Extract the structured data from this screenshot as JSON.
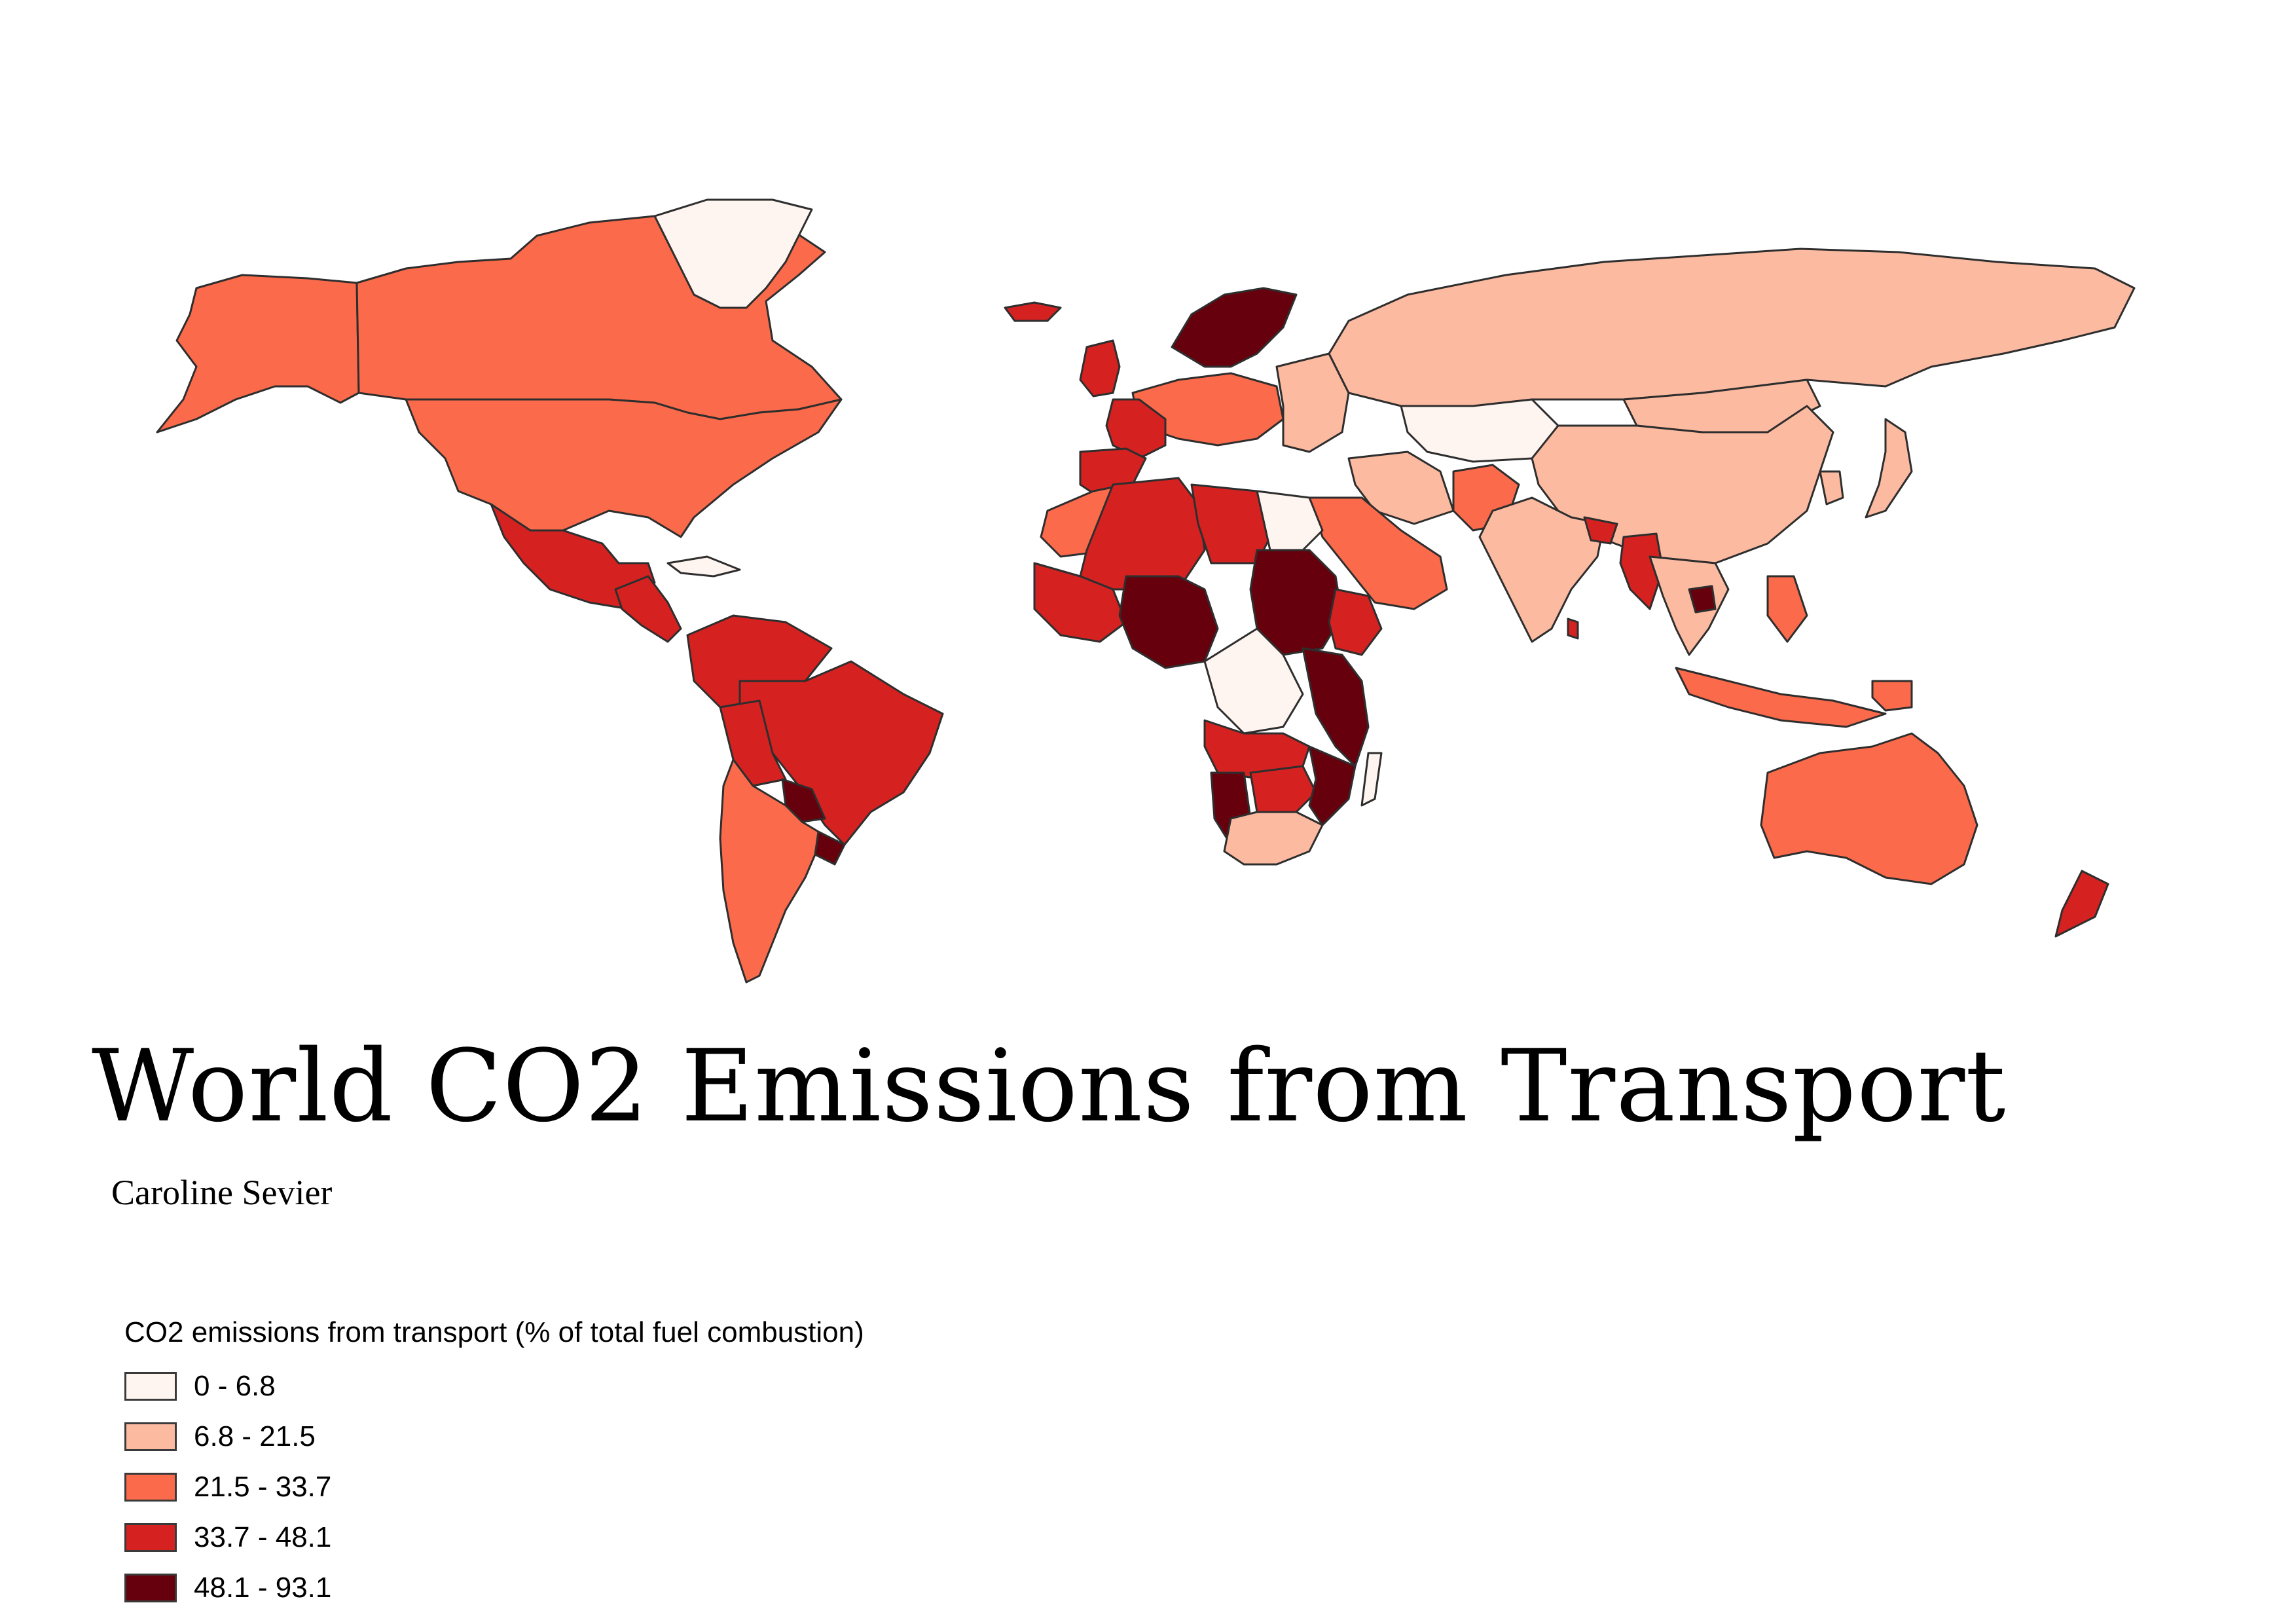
{
  "map": {
    "title": "World CO2 Emissions from Transport",
    "author": "Caroline Sevier",
    "legend": {
      "title": "CO2 emissions from transport (% of total fuel combustion)",
      "classes": [
        {
          "label": "0 - 6.8",
          "color": "#fff5f0"
        },
        {
          "label": "6.8 - 21.5",
          "color": "#fcbba1"
        },
        {
          "label": "21.5 - 33.7",
          "color": "#fb6a4a"
        },
        {
          "label": "33.7 - 48.1",
          "color": "#d52221"
        },
        {
          "label": "48.1 - 93.1",
          "color": "#67000d"
        }
      ]
    },
    "regions": [
      {
        "name": "Canada",
        "class": 2
      },
      {
        "name": "Alaska (United States)",
        "class": 2
      },
      {
        "name": "United States",
        "class": 2
      },
      {
        "name": "Mexico",
        "class": 3
      },
      {
        "name": "Central America",
        "class": 3
      },
      {
        "name": "Colombia / Venezuela / Peru / Ecuador",
        "class": 3
      },
      {
        "name": "Brazil",
        "class": 3
      },
      {
        "name": "Bolivia",
        "class": 3
      },
      {
        "name": "Paraguay",
        "class": 4
      },
      {
        "name": "Uruguay",
        "class": 4
      },
      {
        "name": "Argentina / Chile",
        "class": 2
      },
      {
        "name": "Greenland",
        "class": 0
      },
      {
        "name": "Iceland",
        "class": 3
      },
      {
        "name": "United Kingdom / Ireland",
        "class": 3
      },
      {
        "name": "France",
        "class": 3
      },
      {
        "name": "Spain / Portugal",
        "class": 3
      },
      {
        "name": "Central Europe",
        "class": 2
      },
      {
        "name": "Scandinavia",
        "class": 4
      },
      {
        "name": "Eastern Europe",
        "class": 1
      },
      {
        "name": "Russia",
        "class": 1
      },
      {
        "name": "Kazakhstan",
        "class": 0
      },
      {
        "name": "China",
        "class": 1
      },
      {
        "name": "Mongolia",
        "class": 1
      },
      {
        "name": "Iran",
        "class": 1
      },
      {
        "name": "Arabian Peninsula",
        "class": 2
      },
      {
        "name": "India",
        "class": 1
      },
      {
        "name": "Pakistan",
        "class": 2
      },
      {
        "name": "Bangladesh",
        "class": 3
      },
      {
        "name": "Myanmar",
        "class": 3
      },
      {
        "name": "Thailand / Indochina",
        "class": 1
      },
      {
        "name": "Cambodia",
        "class": 4
      },
      {
        "name": "Indonesia",
        "class": 2
      },
      {
        "name": "Philippines",
        "class": 2
      },
      {
        "name": "Japan",
        "class": 1
      },
      {
        "name": "Korea",
        "class": 1
      },
      {
        "name": "Australia",
        "class": 2
      },
      {
        "name": "New Zealand",
        "class": 3
      },
      {
        "name": "Papua New Guinea",
        "class": 2
      },
      {
        "name": "Sri Lanka",
        "class": 3
      },
      {
        "name": "Morocco / Western Sahara",
        "class": 2
      },
      {
        "name": "Algeria / Mali",
        "class": 3
      },
      {
        "name": "Libya",
        "class": 3
      },
      {
        "name": "Egypt",
        "class": 0
      },
      {
        "name": "Sudan",
        "class": 4
      },
      {
        "name": "Ethiopia",
        "class": 3
      },
      {
        "name": "Niger / Nigeria",
        "class": 4
      },
      {
        "name": "West Africa",
        "class": 3
      },
      {
        "name": "Democratic Republic of the Congo",
        "class": 0
      },
      {
        "name": "East Africa",
        "class": 4
      },
      {
        "name": "Angola / Zambia",
        "class": 3
      },
      {
        "name": "Namibia",
        "class": 4
      },
      {
        "name": "Botswana / Zimbabwe",
        "class": 3
      },
      {
        "name": "South Africa",
        "class": 1
      },
      {
        "name": "Mozambique",
        "class": 4
      },
      {
        "name": "Madagascar",
        "class": 0
      },
      {
        "name": "Cuba",
        "class": 0
      }
    ]
  }
}
